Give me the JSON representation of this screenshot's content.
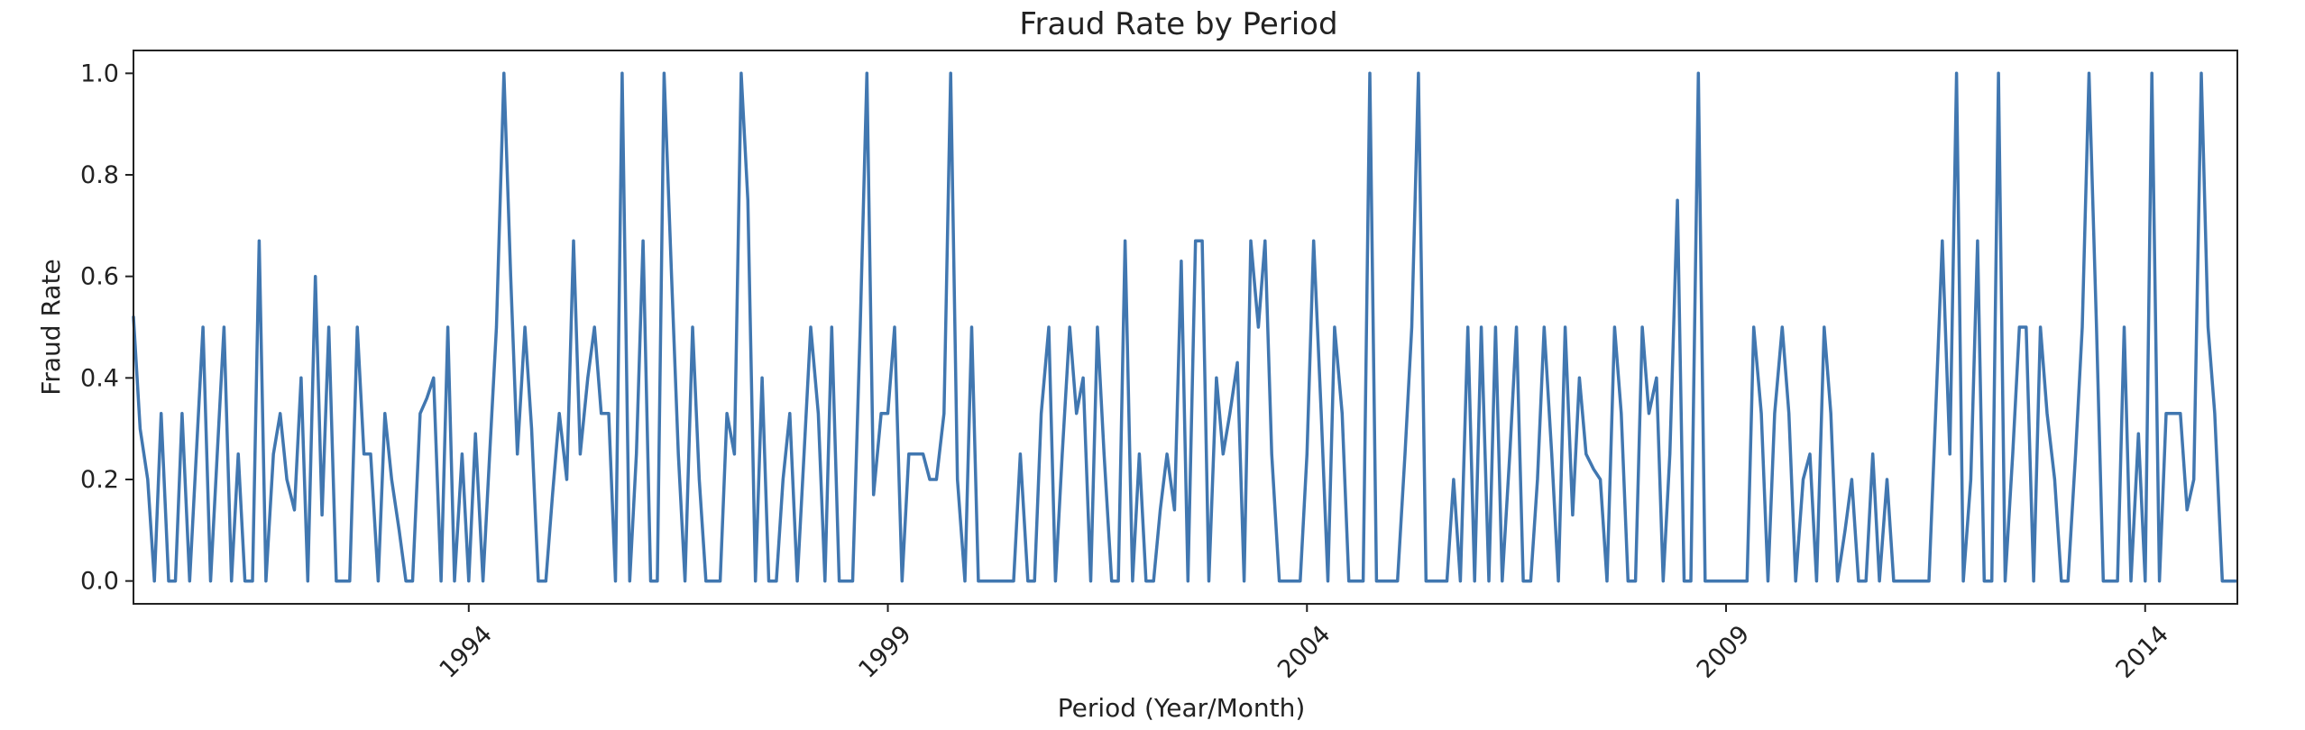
{
  "chart_data": {
    "type": "line",
    "title": "Fraud Rate by Period",
    "xlabel": "Period (Year/Month)",
    "ylabel": "Fraud Rate",
    "x_tick_labels": [
      "1994",
      "1999",
      "2004",
      "2009",
      "2014"
    ],
    "x_tick_values": [
      1994,
      1999,
      2004,
      2009,
      2014
    ],
    "y_tick_labels": [
      "0.0",
      "0.2",
      "0.4",
      "0.6",
      "0.8",
      "1.0"
    ],
    "y_tick_values": [
      0,
      0.2,
      0.4,
      0.6,
      0.8,
      1.0
    ],
    "xlim": [
      1990.0,
      2015.1
    ],
    "ylim": [
      -0.045,
      1.045
    ],
    "grid": false,
    "line_color": "#4177b0",
    "series": [
      {
        "x": [
          1990.0,
          1990.08,
          1990.17,
          1990.25,
          1990.33,
          1990.42,
          1990.5,
          1990.58,
          1990.67,
          1990.75,
          1990.83,
          1990.92,
          1991.0,
          1991.08,
          1991.17,
          1991.25,
          1991.33,
          1991.42,
          1991.5,
          1991.58,
          1991.67,
          1991.75,
          1991.83,
          1991.92,
          1992.0,
          1992.08,
          1992.17,
          1992.25,
          1992.33,
          1992.42,
          1992.5,
          1992.58,
          1992.67,
          1992.75,
          1992.83,
          1992.92,
          1993.0,
          1993.08,
          1993.17,
          1993.25,
          1993.33,
          1993.42,
          1993.5,
          1993.58,
          1993.67,
          1993.75,
          1993.83,
          1993.92,
          1994.0,
          1994.08,
          1994.17,
          1994.25,
          1994.33,
          1994.42,
          1994.5,
          1994.58,
          1994.67,
          1994.75,
          1994.83,
          1994.92,
          1995.0,
          1995.08,
          1995.17,
          1995.25,
          1995.33,
          1995.42,
          1995.5,
          1995.58,
          1995.67,
          1995.75,
          1995.83,
          1995.92,
          1996.0,
          1996.08,
          1996.17,
          1996.25,
          1996.33,
          1996.42,
          1996.5,
          1996.58,
          1996.67,
          1996.75,
          1996.83,
          1996.92,
          1997.0,
          1997.08,
          1997.17,
          1997.25,
          1997.33,
          1997.42,
          1997.5,
          1997.58,
          1997.67,
          1997.75,
          1997.83,
          1997.92,
          1998.0,
          1998.08,
          1998.17,
          1998.25,
          1998.33,
          1998.42,
          1998.5,
          1998.58,
          1998.67,
          1998.75,
          1998.83,
          1998.92,
          1999.0,
          1999.08,
          1999.17,
          1999.25,
          1999.33,
          1999.42,
          1999.5,
          1999.58,
          1999.67,
          1999.75,
          1999.83,
          1999.92,
          2000.0,
          2000.08,
          2000.17,
          2000.25,
          2000.33,
          2000.42,
          2000.5,
          2000.58,
          2000.67,
          2000.75,
          2000.83,
          2000.92,
          2001.0,
          2001.08,
          2001.17,
          2001.25,
          2001.33,
          2001.42,
          2001.5,
          2001.58,
          2001.67,
          2001.75,
          2001.83,
          2001.92,
          2002.0,
          2002.08,
          2002.17,
          2002.25,
          2002.33,
          2002.42,
          2002.5,
          2002.58,
          2002.67,
          2002.75,
          2002.83,
          2002.92,
          2003.0,
          2003.08,
          2003.17,
          2003.25,
          2003.33,
          2003.42,
          2003.5,
          2003.58,
          2003.67,
          2003.75,
          2003.83,
          2003.92,
          2004.0,
          2004.08,
          2004.17,
          2004.25,
          2004.33,
          2004.42,
          2004.5,
          2004.58,
          2004.67,
          2004.75,
          2004.83,
          2004.92,
          2005.0,
          2005.08,
          2005.17,
          2005.25,
          2005.33,
          2005.42,
          2005.5,
          2005.58,
          2005.67,
          2005.75,
          2005.83,
          2005.92,
          2006.0,
          2006.08,
          2006.17,
          2006.25,
          2006.33,
          2006.42,
          2006.5,
          2006.58,
          2006.67,
          2006.75,
          2006.83,
          2006.92,
          2007.0,
          2007.08,
          2007.17,
          2007.25,
          2007.33,
          2007.42,
          2007.5,
          2007.58,
          2007.67,
          2007.75,
          2007.83,
          2007.92,
          2008.0,
          2008.08,
          2008.17,
          2008.25,
          2008.33,
          2008.42,
          2008.5,
          2008.58,
          2008.67,
          2008.75,
          2008.83,
          2008.92,
          2009.0,
          2009.08,
          2009.17,
          2009.25,
          2009.33,
          2009.42,
          2009.5,
          2009.58,
          2009.67,
          2009.75,
          2009.83,
          2009.92,
          2010.0,
          2010.08,
          2010.17,
          2010.25,
          2010.33,
          2010.42,
          2010.5,
          2010.58,
          2010.67,
          2010.75,
          2010.83,
          2010.92,
          2011.0,
          2011.08,
          2011.17,
          2011.25,
          2011.33,
          2011.42,
          2011.5,
          2011.58,
          2011.67,
          2011.75,
          2011.83,
          2011.92,
          2012.0,
          2012.08,
          2012.17,
          2012.25,
          2012.33,
          2012.42,
          2012.5,
          2012.58,
          2012.67,
          2012.75,
          2012.83,
          2012.92,
          2013.0,
          2013.08,
          2013.17,
          2013.25,
          2013.33,
          2013.42,
          2013.5,
          2013.58,
          2013.67,
          2013.75,
          2013.83,
          2013.92,
          2014.0,
          2014.08,
          2014.17,
          2014.25,
          2014.33,
          2014.42,
          2014.5,
          2014.58,
          2014.67,
          2014.75,
          2014.83,
          2014.92,
          2015.0,
          2015.08
        ],
        "values": [
          0.52,
          0.3,
          0.2,
          0.0,
          0.33,
          0.0,
          0.0,
          0.33,
          0.0,
          0.25,
          0.5,
          0.0,
          0.25,
          0.5,
          0.0,
          0.25,
          0.0,
          0.0,
          0.67,
          0.0,
          0.25,
          0.33,
          0.2,
          0.14,
          0.4,
          0.0,
          0.6,
          0.13,
          0.5,
          0.0,
          0.0,
          0.0,
          0.5,
          0.25,
          0.25,
          0.0,
          0.33,
          0.2,
          0.1,
          0.0,
          0.0,
          0.33,
          0.36,
          0.4,
          0.0,
          0.5,
          0.0,
          0.25,
          0.0,
          0.29,
          0.0,
          0.25,
          0.5,
          1.0,
          0.6,
          0.25,
          0.5,
          0.3,
          0.0,
          0.0,
          0.17,
          0.33,
          0.2,
          0.67,
          0.25,
          0.4,
          0.5,
          0.33,
          0.33,
          0.0,
          1.0,
          0.0,
          0.25,
          0.67,
          0.0,
          0.0,
          1.0,
          0.6,
          0.25,
          0.0,
          0.5,
          0.2,
          0.0,
          0.0,
          0.0,
          0.33,
          0.25,
          1.0,
          0.75,
          0.0,
          0.4,
          0.0,
          0.0,
          0.2,
          0.33,
          0.0,
          0.25,
          0.5,
          0.33,
          0.0,
          0.5,
          0.0,
          0.0,
          0.0,
          0.5,
          1.0,
          0.17,
          0.33,
          0.33,
          0.5,
          0.0,
          0.25,
          0.25,
          0.25,
          0.2,
          0.2,
          0.33,
          1.0,
          0.2,
          0.0,
          0.5,
          0.0,
          0.0,
          0.0,
          0.0,
          0.0,
          0.0,
          0.25,
          0.0,
          0.0,
          0.33,
          0.5,
          0.0,
          0.25,
          0.5,
          0.33,
          0.4,
          0.0,
          0.5,
          0.25,
          0.0,
          0.0,
          0.67,
          0.0,
          0.25,
          0.0,
          0.0,
          0.14,
          0.25,
          0.14,
          0.63,
          0.0,
          0.67,
          0.67,
          0.0,
          0.4,
          0.25,
          0.33,
          0.43,
          0.0,
          0.67,
          0.5,
          0.67,
          0.25,
          0.0,
          0.0,
          0.0,
          0.0,
          0.25,
          0.67,
          0.33,
          0.0,
          0.5,
          0.33,
          0.0,
          0.0,
          0.0,
          1.0,
          0.0,
          0.0,
          0.0,
          0.0,
          0.25,
          0.5,
          1.0,
          0.0,
          0.0,
          0.0,
          0.0,
          0.2,
          0.0,
          0.5,
          0.0,
          0.5,
          0.0,
          0.5,
          0.0,
          0.25,
          0.5,
          0.0,
          0.0,
          0.2,
          0.5,
          0.25,
          0.0,
          0.5,
          0.13,
          0.4,
          0.25,
          0.22,
          0.2,
          0.0,
          0.5,
          0.33,
          0.0,
          0.0,
          0.5,
          0.33,
          0.4,
          0.0,
          0.25,
          0.75,
          0.0,
          0.0,
          1.0,
          0.0,
          0.0,
          0.0,
          0.0,
          0.0,
          0.0,
          0.0,
          0.5,
          0.33,
          0.0,
          0.33,
          0.5,
          0.33,
          0.0,
          0.2,
          0.25,
          0.0,
          0.5,
          0.33,
          0.0,
          0.1,
          0.2,
          0.0,
          0.0,
          0.25,
          0.0,
          0.2,
          0.0,
          0.0,
          0.0,
          0.0,
          0.0,
          0.0,
          0.33,
          0.67,
          0.25,
          1.0,
          0.0,
          0.2,
          0.67,
          0.0,
          0.0,
          1.0,
          0.0,
          0.25,
          0.5,
          0.5,
          0.0,
          0.5,
          0.33,
          0.2,
          0.0,
          0.0,
          0.25,
          0.5,
          1.0,
          0.5,
          0.0,
          0.0,
          0.0,
          0.5,
          0.0,
          0.29,
          0.0,
          1.0,
          0.0,
          0.33,
          0.33,
          0.33,
          0.14,
          0.2,
          1.0,
          0.5,
          0.33,
          0.0,
          0.0,
          0.0
        ]
      }
    ]
  }
}
